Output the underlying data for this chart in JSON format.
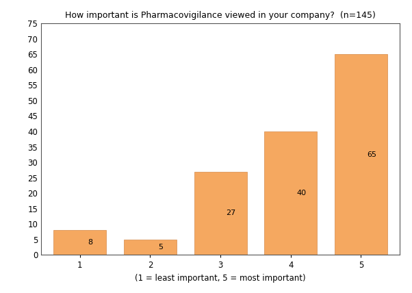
{
  "title": "How important is Pharmacovigilance viewed in your company?  (n=145)",
  "categories": [
    1,
    2,
    3,
    4,
    5
  ],
  "values": [
    8,
    5,
    27,
    40,
    65
  ],
  "bar_color": "#F5A860",
  "bar_edgecolor": "#D4894A",
  "xlabel": "(1 = least important, 5 = most important)",
  "ylabel": "",
  "ylim": [
    0,
    75
  ],
  "yticks": [
    0,
    5,
    10,
    15,
    20,
    25,
    30,
    35,
    40,
    45,
    50,
    55,
    60,
    65,
    70,
    75
  ],
  "xticks": [
    1,
    2,
    3,
    4,
    5
  ],
  "title_fontsize": 9,
  "label_fontsize": 8.5,
  "tick_fontsize": 8.5,
  "bar_label_fontsize": 8,
  "background_color": "#ffffff",
  "bar_width": 0.75
}
